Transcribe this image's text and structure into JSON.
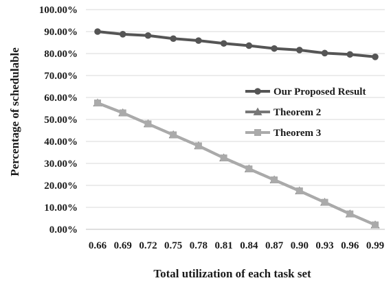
{
  "chart_data": {
    "type": "line",
    "title": "",
    "xlabel": "Total utilization of each task set",
    "ylabel": "Percentage of schedulable",
    "categories": [
      "0.66",
      "0.69",
      "0.72",
      "0.75",
      "0.78",
      "0.81",
      "0.84",
      "0.87",
      "0.90",
      "0.93",
      "0.96",
      "0.99"
    ],
    "ylim": [
      0,
      100
    ],
    "yticks": [
      "0.00%",
      "10.00%",
      "20.00%",
      "30.00%",
      "40.00%",
      "50.00%",
      "60.00%",
      "70.00%",
      "80.00%",
      "90.00%",
      "100.00%"
    ],
    "grid": "horizontal",
    "legend_position": "right",
    "series": [
      {
        "name": "Our Proposed Result",
        "color": "#555555",
        "marker": "circle",
        "values": [
          90.0,
          88.8,
          88.2,
          86.8,
          85.9,
          84.6,
          83.6,
          82.3,
          81.6,
          80.2,
          79.6,
          78.5
        ]
      },
      {
        "name": "Theorem 2",
        "color": "#777777",
        "marker": "triangle",
        "values": [
          57.5,
          53.0,
          48.0,
          43.0,
          38.0,
          32.5,
          27.5,
          22.5,
          17.5,
          12.3,
          7.0,
          2.0
        ]
      },
      {
        "name": "Theorem 3",
        "color": "#aaaaaa",
        "marker": "square",
        "values": [
          57.5,
          53.0,
          48.0,
          43.0,
          38.0,
          32.5,
          27.5,
          22.5,
          17.5,
          12.3,
          7.0,
          2.0
        ]
      }
    ]
  }
}
